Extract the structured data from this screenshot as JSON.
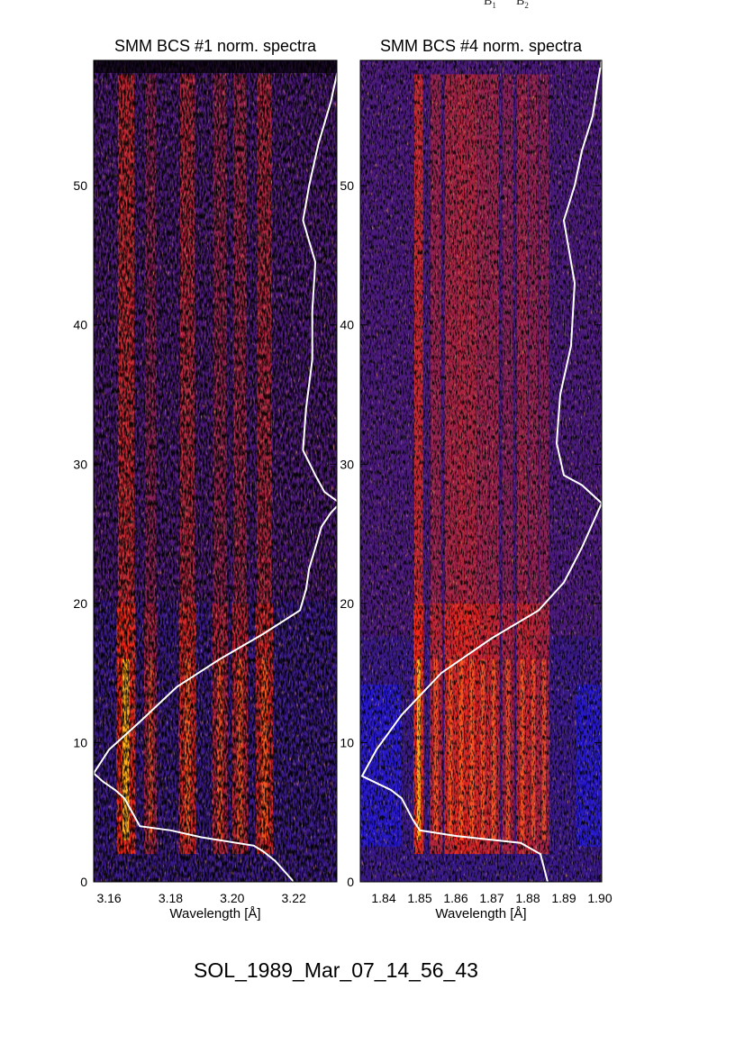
{
  "header_notes": [
    {
      "base": "B",
      "sub": "1"
    },
    {
      "base": "B",
      "sub": "2"
    }
  ],
  "footer": {
    "event_id": "SOL_1989_Mar_07_14_56_43"
  },
  "chart_data": [
    {
      "type": "heatmap",
      "title": "SMM BCS #1 norm. spectra",
      "xlabel": "Wavelength [Å]",
      "ylabel": "",
      "xlim": [
        3.155,
        3.234
      ],
      "ylim": [
        0,
        59
      ],
      "xticks": [
        "3.16",
        "3.18",
        "3.20",
        "3.22"
      ],
      "yticks": [
        "0",
        "10",
        "20",
        "30",
        "40",
        "50"
      ],
      "spectral_lines": [
        {
          "x": 3.1655,
          "strength": 1.0,
          "width": 0.0022
        },
        {
          "x": 3.1735,
          "strength": 0.35,
          "width": 0.0015
        },
        {
          "x": 3.1855,
          "strength": 0.8,
          "width": 0.002
        },
        {
          "x": 3.196,
          "strength": 0.45,
          "width": 0.0018
        },
        {
          "x": 3.2025,
          "strength": 0.55,
          "width": 0.0018
        },
        {
          "x": 3.2105,
          "strength": 0.75,
          "width": 0.002
        }
      ],
      "lightcurve": {
        "name": "",
        "x": [
          3.22,
          3.214,
          3.21,
          3.207,
          3.19,
          3.18,
          3.17,
          3.167,
          3.165,
          3.162,
          3.158,
          3.155,
          3.16,
          3.17,
          3.182,
          3.196,
          3.21,
          3.222,
          3.224,
          3.225,
          3.227,
          3.229,
          3.232,
          3.235,
          3.23,
          3.227,
          3.223,
          3.224,
          3.226,
          3.226,
          3.227,
          3.223,
          3.225,
          3.228,
          3.232,
          3.235
        ],
        "y": [
          0,
          1.5,
          2.2,
          2.6,
          3.2,
          3.7,
          4.0,
          5.2,
          6.0,
          6.6,
          7.2,
          7.8,
          9.5,
          11.5,
          14.0,
          16.0,
          17.8,
          19.5,
          21.0,
          22.5,
          24.0,
          25.5,
          26.5,
          27.2,
          28.0,
          29.2,
          31.0,
          34.0,
          37.5,
          41.0,
          44.5,
          47.5,
          50.0,
          53.0,
          56.0,
          59.0
        ]
      }
    },
    {
      "type": "heatmap",
      "title": "SMM BCS #4 norm. spectra",
      "xlabel": "Wavelength [Å]",
      "ylabel": "",
      "xlim": [
        1.8335,
        1.9005
      ],
      "ylim": [
        0,
        59
      ],
      "xticks": [
        "1.84",
        "1.85",
        "1.86",
        "1.87",
        "1.88",
        "1.89",
        "1.90"
      ],
      "yticks": [
        "0",
        "10",
        "20",
        "30",
        "40",
        "50"
      ],
      "spectral_lines": [
        {
          "x": 1.8497,
          "strength": 1.0,
          "width": 0.0009
        },
        {
          "x": 1.8545,
          "strength": 0.5,
          "width": 0.0012
        },
        {
          "x": 1.8585,
          "strength": 0.7,
          "width": 0.0012
        },
        {
          "x": 1.8615,
          "strength": 0.8,
          "width": 0.0012
        },
        {
          "x": 1.8645,
          "strength": 0.75,
          "width": 0.0012
        },
        {
          "x": 1.8675,
          "strength": 0.55,
          "width": 0.0012
        },
        {
          "x": 1.8705,
          "strength": 0.55,
          "width": 0.0012
        },
        {
          "x": 1.8745,
          "strength": 0.35,
          "width": 0.0012
        },
        {
          "x": 1.8785,
          "strength": 0.55,
          "width": 0.0012
        },
        {
          "x": 1.8815,
          "strength": 0.45,
          "width": 0.0011
        },
        {
          "x": 1.8845,
          "strength": 0.35,
          "width": 0.0011
        }
      ],
      "lightcurve": {
        "name": "",
        "x": [
          1.8855,
          1.8835,
          1.878,
          1.86,
          1.85,
          1.848,
          1.845,
          1.842,
          1.838,
          1.834,
          1.838,
          1.845,
          1.856,
          1.87,
          1.883,
          1.89,
          1.895,
          1.9005,
          1.895,
          1.89,
          1.888,
          1.889,
          1.892,
          1.893,
          1.89,
          1.893,
          1.895,
          1.898,
          1.8995,
          1.9005
        ],
        "y": [
          0,
          2.0,
          2.8,
          3.3,
          3.7,
          4.5,
          6.0,
          6.6,
          7.1,
          7.6,
          9.5,
          12.0,
          15.0,
          17.5,
          19.5,
          21.5,
          24.0,
          27.2,
          28.5,
          29.2,
          31.5,
          35.0,
          38.5,
          43.0,
          47.5,
          50.0,
          52.5,
          55.0,
          57.5,
          59.0
        ]
      }
    }
  ]
}
